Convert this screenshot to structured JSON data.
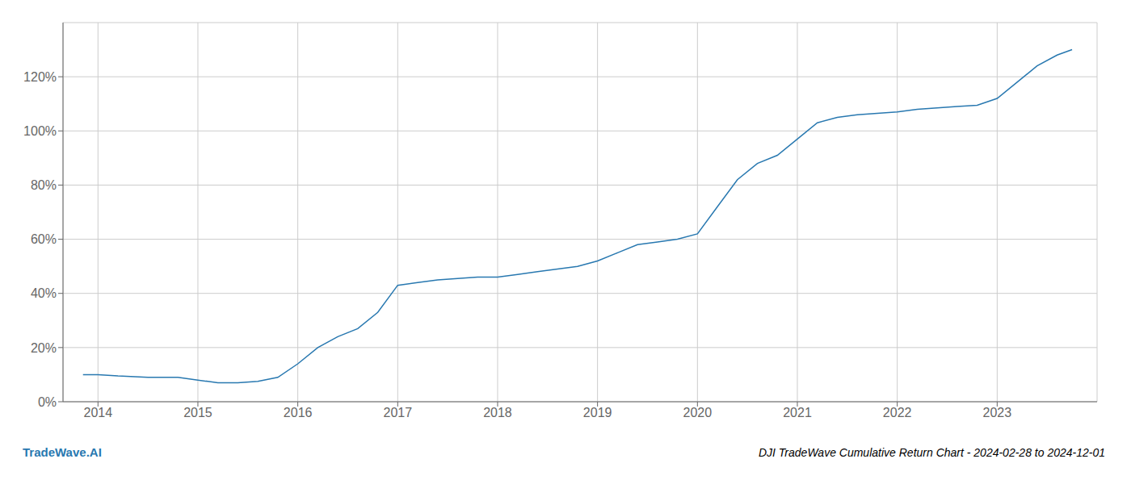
{
  "chart_data": {
    "type": "line",
    "title": "DJI TradeWave Cumulative Return Chart - 2024-02-28 to 2024-12-01",
    "annotations": [
      {
        "text": "TradeWave.AI",
        "color": "#2878b0"
      }
    ],
    "x": [
      2013.85,
      2014.0,
      2014.2,
      2014.5,
      2014.8,
      2015.0,
      2015.1,
      2015.2,
      2015.4,
      2015.6,
      2015.8,
      2016.0,
      2016.2,
      2016.4,
      2016.6,
      2016.8,
      2017.0,
      2017.2,
      2017.4,
      2017.6,
      2017.8,
      2018.0,
      2018.2,
      2018.4,
      2018.6,
      2018.8,
      2019.0,
      2019.2,
      2019.4,
      2019.6,
      2019.8,
      2020.0,
      2020.2,
      2020.4,
      2020.6,
      2020.8,
      2021.0,
      2021.2,
      2021.4,
      2021.6,
      2021.8,
      2022.0,
      2022.2,
      2022.4,
      2022.6,
      2022.8,
      2023.0,
      2023.2,
      2023.4,
      2023.6,
      2023.75
    ],
    "values": [
      10,
      10,
      9.5,
      9,
      9,
      8,
      7.5,
      7,
      7,
      7.5,
      9,
      14,
      20,
      24,
      27,
      33,
      43,
      44,
      45,
      45.5,
      46,
      46,
      47,
      48,
      49,
      50,
      52,
      55,
      58,
      59,
      60,
      62,
      72,
      82,
      88,
      91,
      97,
      103,
      105,
      106,
      106.5,
      107,
      108,
      108.5,
      109,
      109.5,
      112,
      118,
      124,
      128,
      130
    ],
    "color": "#2878b0",
    "xlim": [
      2013.65,
      2024.0
    ],
    "xticks": [
      2014,
      2015,
      2016,
      2017,
      2018,
      2019,
      2020,
      2021,
      2022,
      2023
    ],
    "ylim": [
      0,
      140
    ],
    "yticks": [
      {
        "value": 0,
        "label": "0%"
      },
      {
        "value": 20,
        "label": "20%"
      },
      {
        "value": 40,
        "label": "40%"
      },
      {
        "value": 60,
        "label": "60%"
      },
      {
        "value": 80,
        "label": "80%"
      },
      {
        "value": 100,
        "label": "100%"
      },
      {
        "value": 120,
        "label": "120%"
      }
    ],
    "grid": true
  }
}
